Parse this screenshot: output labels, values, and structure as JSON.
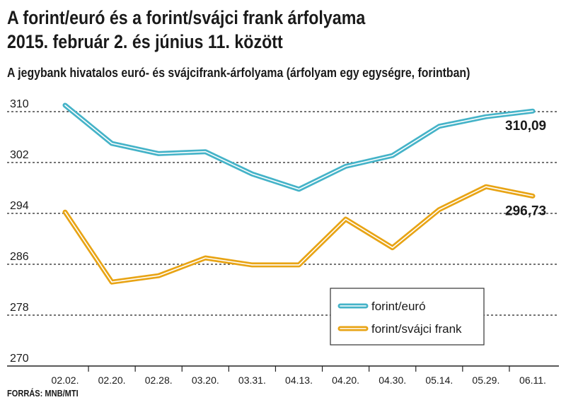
{
  "header": {
    "title_line1": "A forint/euró és a forint/svájci frank árfolyama",
    "title_line2": "2015. február 2. és június 11. között",
    "subtitle": "A jegybank hivatalos euró- és svájcifrank-árfolyama (árfolyam egy egységre, forintban)"
  },
  "footer": {
    "source": "FORRÁS: MNB/MTI"
  },
  "chart_data": {
    "type": "line",
    "title": "A forint/euró és a forint/svájci frank árfolyama 2015. február 2. és június 11. között",
    "subtitle": "A jegybank hivatalos euró- és svájcifrank-árfolyama (árfolyam egy egységre, forintban)",
    "categories": [
      "02.02.",
      "02.20.",
      "02.28.",
      "03.20.",
      "03.31.",
      "04.13.",
      "04.20.",
      "04.30.",
      "05.14.",
      "05.29.",
      "06.11."
    ],
    "yticks": [
      310,
      302,
      294,
      286,
      278,
      270
    ],
    "ylim": [
      270,
      310
    ],
    "grid": true,
    "legend_position": "bottom-right",
    "series": [
      {
        "name": "forint/euró",
        "color": "#45b3c8",
        "values": [
          311.0,
          305.0,
          303.4,
          303.7,
          300.2,
          297.8,
          301.4,
          303.1,
          307.7,
          309.2,
          310.09
        ],
        "end_label": "310,09"
      },
      {
        "name": "forint/svájci frank",
        "color": "#e8a415",
        "values": [
          294.2,
          283.2,
          284.2,
          287.0,
          285.9,
          285.9,
          293.1,
          288.6,
          294.6,
          298.2,
          296.73
        ],
        "end_label": "296,73"
      }
    ]
  }
}
